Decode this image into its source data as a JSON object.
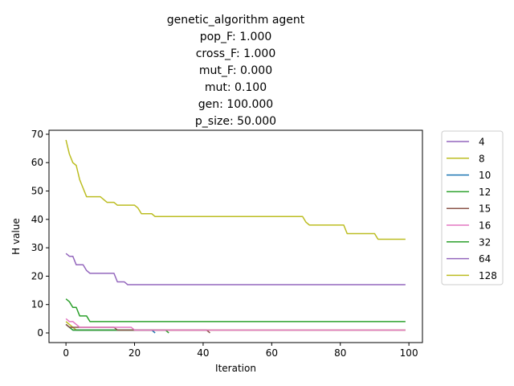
{
  "chart_data": {
    "type": "line",
    "title_lines": [
      "genetic_algorithm agent",
      "pop_F:   1.000",
      "cross_F:   1.000",
      "mut_F:   0.000",
      "mut:   0.100",
      "gen: 100.000",
      "p_size:  50.000"
    ],
    "xlabel": "Iteration",
    "ylabel": "H value",
    "xlim": [
      -4.95,
      103.95
    ],
    "ylim": [
      -3.4,
      71.4
    ],
    "xticks": [
      0,
      20,
      40,
      60,
      80,
      100
    ],
    "yticks": [
      0,
      10,
      20,
      30,
      40,
      50,
      60,
      70
    ],
    "grid": false,
    "legend_position": "outside-right",
    "series": [
      {
        "name": "4",
        "color": "#9467bd",
        "points": [
          [
            0,
            3
          ],
          [
            1,
            2
          ],
          [
            2,
            2
          ],
          [
            3,
            1
          ],
          [
            99,
            1
          ]
        ]
      },
      {
        "name": "8",
        "color": "#bcbd22",
        "points": [
          [
            0,
            4
          ],
          [
            1,
            3
          ],
          [
            2,
            2
          ],
          [
            3,
            1
          ],
          [
            99,
            1
          ]
        ]
      },
      {
        "name": "10",
        "color": "#1f77b4",
        "points": [
          [
            0,
            3
          ],
          [
            1,
            2
          ],
          [
            2,
            1
          ],
          [
            25,
            1
          ],
          [
            26,
            0
          ]
        ]
      },
      {
        "name": "12",
        "color": "#2ca02c",
        "points": [
          [
            0,
            3
          ],
          [
            1,
            2
          ],
          [
            2,
            1
          ],
          [
            29,
            1
          ],
          [
            30,
            0
          ]
        ]
      },
      {
        "name": "15",
        "color": "#8c564b",
        "points": [
          [
            0,
            3
          ],
          [
            1,
            2
          ],
          [
            14,
            2
          ],
          [
            15,
            1
          ],
          [
            41,
            1
          ],
          [
            42,
            0
          ]
        ]
      },
      {
        "name": "16",
        "color": "#e377c2",
        "points": [
          [
            0,
            5
          ],
          [
            1,
            4
          ],
          [
            2,
            4
          ],
          [
            3,
            3
          ],
          [
            4,
            2
          ],
          [
            19,
            2
          ],
          [
            20,
            1
          ],
          [
            99,
            1
          ]
        ]
      },
      {
        "name": "32",
        "color": "#2ca02c",
        "points": [
          [
            0,
            12
          ],
          [
            1,
            11
          ],
          [
            2,
            9
          ],
          [
            3,
            9
          ],
          [
            4,
            6
          ],
          [
            6,
            6
          ],
          [
            7,
            4
          ],
          [
            99,
            4
          ]
        ]
      },
      {
        "name": "64",
        "color": "#9467bd",
        "points": [
          [
            0,
            28
          ],
          [
            1,
            27
          ],
          [
            2,
            27
          ],
          [
            3,
            24
          ],
          [
            5,
            24
          ],
          [
            6,
            22
          ],
          [
            7,
            21
          ],
          [
            14,
            21
          ],
          [
            15,
            18
          ],
          [
            17,
            18
          ],
          [
            18,
            17
          ],
          [
            99,
            17
          ]
        ]
      },
      {
        "name": "128",
        "color": "#bcbd22",
        "points": [
          [
            0,
            68
          ],
          [
            1,
            63
          ],
          [
            2,
            60
          ],
          [
            3,
            59
          ],
          [
            4,
            54
          ],
          [
            5,
            51
          ],
          [
            6,
            48
          ],
          [
            10,
            48
          ],
          [
            12,
            46
          ],
          [
            14,
            46
          ],
          [
            15,
            45
          ],
          [
            20,
            45
          ],
          [
            21,
            44
          ],
          [
            22,
            42
          ],
          [
            25,
            42
          ],
          [
            26,
            41
          ],
          [
            69,
            41
          ],
          [
            70,
            39
          ],
          [
            71,
            38
          ],
          [
            81,
            38
          ],
          [
            82,
            35
          ],
          [
            90,
            35
          ],
          [
            91,
            33
          ],
          [
            99,
            33
          ]
        ]
      }
    ]
  }
}
